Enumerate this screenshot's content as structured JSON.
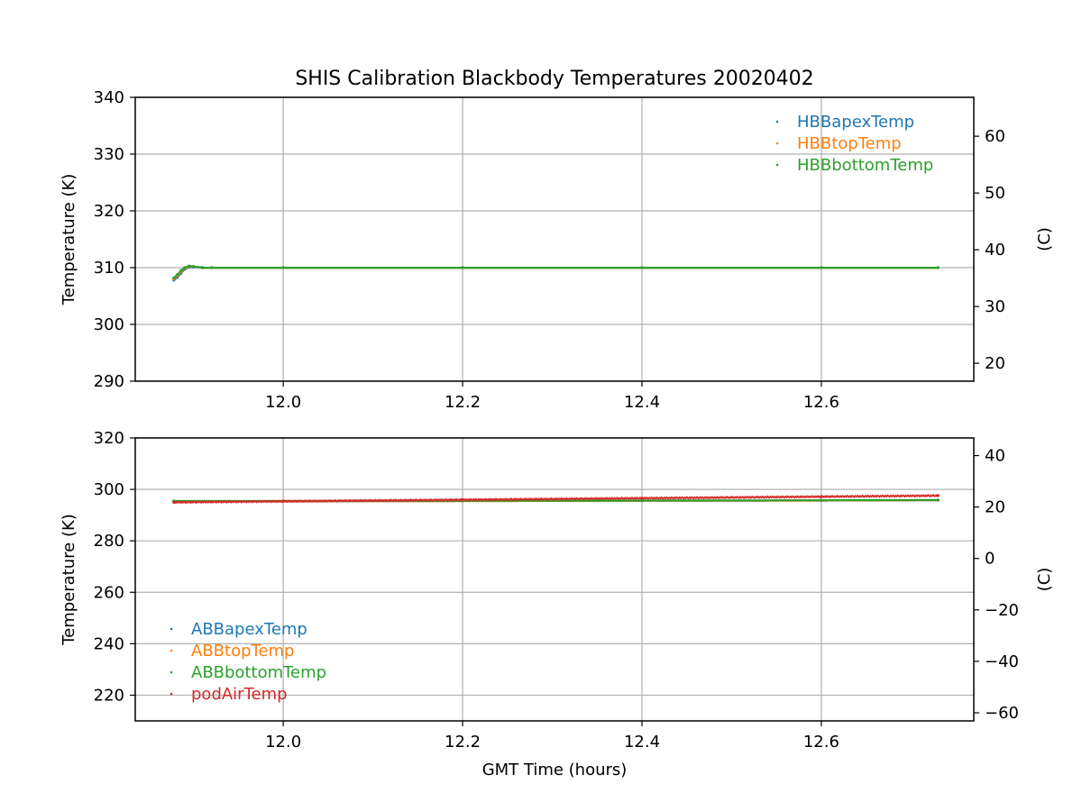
{
  "title": "SHIS Calibration Blackbody Temperatures 20020402",
  "colors": {
    "blue": "#1f77b4",
    "orange": "#ff7f0e",
    "green": "#2ca02c",
    "red": "#d62728"
  },
  "chart_data": [
    {
      "type": "scatter",
      "title": "SHIS Calibration Blackbody Temperatures 20020402",
      "xlabel": "",
      "ylabel": "Temperature (K)",
      "ylabel_right": "(C)",
      "xlim": [
        11.835,
        12.77
      ],
      "ylim": [
        290,
        340
      ],
      "ylim_right": [
        16.85,
        66.85
      ],
      "xticks": [
        "12.0",
        "12.2",
        "12.4",
        "12.6"
      ],
      "yticks": [
        "290",
        "300",
        "310",
        "320",
        "330",
        "340"
      ],
      "yticks_right": [
        "20",
        "30",
        "40",
        "50",
        "60"
      ],
      "grid": true,
      "legend_position": "top-right",
      "series": [
        {
          "name": "HBBapexTemp",
          "color": "#1f77b4",
          "x": [
            11.878,
            11.882,
            11.886,
            11.89,
            11.895,
            11.9,
            11.91,
            11.92,
            12.0,
            12.2,
            12.4,
            12.6,
            12.73
          ],
          "y": [
            307.8,
            308.3,
            309.0,
            309.7,
            310.1,
            310.1,
            310.0,
            310.0,
            310.0,
            310.0,
            310.0,
            310.0,
            310.0
          ]
        },
        {
          "name": "HBBtopTemp",
          "color": "#ff7f0e",
          "x": [
            11.878,
            11.882,
            11.886,
            11.89,
            11.895,
            11.9,
            11.91,
            11.92,
            12.0,
            12.2,
            12.4,
            12.6,
            12.73
          ],
          "y": [
            308.0,
            308.6,
            309.3,
            309.9,
            310.2,
            310.2,
            310.0,
            310.0,
            310.0,
            310.0,
            310.0,
            310.0,
            310.0
          ]
        },
        {
          "name": "HBBbottomTemp",
          "color": "#2ca02c",
          "x": [
            11.878,
            11.882,
            11.886,
            11.89,
            11.895,
            11.9,
            11.91,
            11.92,
            12.0,
            12.2,
            12.4,
            12.6,
            12.73
          ],
          "y": [
            308.2,
            308.8,
            309.5,
            310.0,
            310.3,
            310.2,
            310.0,
            310.0,
            310.0,
            310.0,
            310.0,
            310.0,
            310.0
          ]
        }
      ]
    },
    {
      "type": "scatter",
      "title": "",
      "xlabel": "GMT Time (hours)",
      "ylabel": "Temperature (K)",
      "ylabel_right": "(C)",
      "xlim": [
        11.835,
        12.77
      ],
      "ylim": [
        210,
        320
      ],
      "ylim_right": [
        -63.15,
        46.85
      ],
      "xticks": [
        "12.0",
        "12.2",
        "12.4",
        "12.6"
      ],
      "yticks": [
        "220",
        "240",
        "260",
        "280",
        "300",
        "320"
      ],
      "yticks_right": [
        "−60",
        "−40",
        "−20",
        "0",
        "20",
        "40"
      ],
      "grid": true,
      "legend_position": "bottom-left",
      "series": [
        {
          "name": "ABBapexTemp",
          "color": "#1f77b4",
          "x": [
            11.878,
            12.0,
            12.2,
            12.4,
            12.6,
            12.73
          ],
          "y": [
            295.4,
            295.4,
            295.5,
            295.6,
            295.7,
            295.8
          ]
        },
        {
          "name": "ABBtopTemp",
          "color": "#ff7f0e",
          "x": [
            11.878,
            12.0,
            12.2,
            12.4,
            12.6,
            12.73
          ],
          "y": [
            295.4,
            295.4,
            295.5,
            295.6,
            295.7,
            295.8
          ]
        },
        {
          "name": "ABBbottomTemp",
          "color": "#2ca02c",
          "x": [
            11.878,
            12.0,
            12.2,
            12.4,
            12.6,
            12.73
          ],
          "y": [
            295.5,
            295.5,
            295.6,
            295.7,
            295.8,
            295.9
          ]
        },
        {
          "name": "podAirTemp",
          "color": "#d62728",
          "x": [
            11.878,
            12.0,
            12.2,
            12.4,
            12.6,
            12.73
          ],
          "y": [
            295.0,
            295.4,
            296.0,
            296.6,
            297.2,
            297.6
          ]
        }
      ]
    }
  ]
}
